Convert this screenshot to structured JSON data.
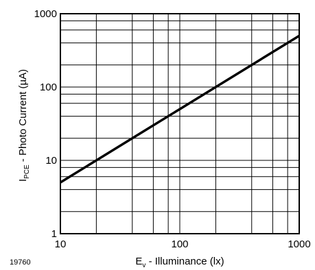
{
  "figure_id": "19760",
  "chart_data": {
    "type": "line",
    "x_scale": "log",
    "y_scale": "log",
    "xlim": [
      10,
      1000
    ],
    "ylim": [
      1,
      1000
    ],
    "grid": true,
    "x_ticks": [
      10,
      100,
      1000
    ],
    "y_ticks": [
      1,
      10,
      100,
      1000
    ],
    "x_tick_labels": [
      "10",
      "100",
      "1000"
    ],
    "y_tick_labels": [
      "1",
      "10",
      "100",
      "1000"
    ],
    "xlabel": {
      "main": "E",
      "sub": "v",
      "rest": " - Illuminance (lx)"
    },
    "ylabel": {
      "main": "I",
      "sub": "PCE",
      "rest": " - Photo Current (µA)"
    },
    "series": [
      {
        "x": [
          10,
          20,
          50,
          100,
          200,
          500,
          1000
        ],
        "y": [
          5,
          10,
          25,
          50,
          100,
          250,
          500
        ]
      }
    ]
  }
}
